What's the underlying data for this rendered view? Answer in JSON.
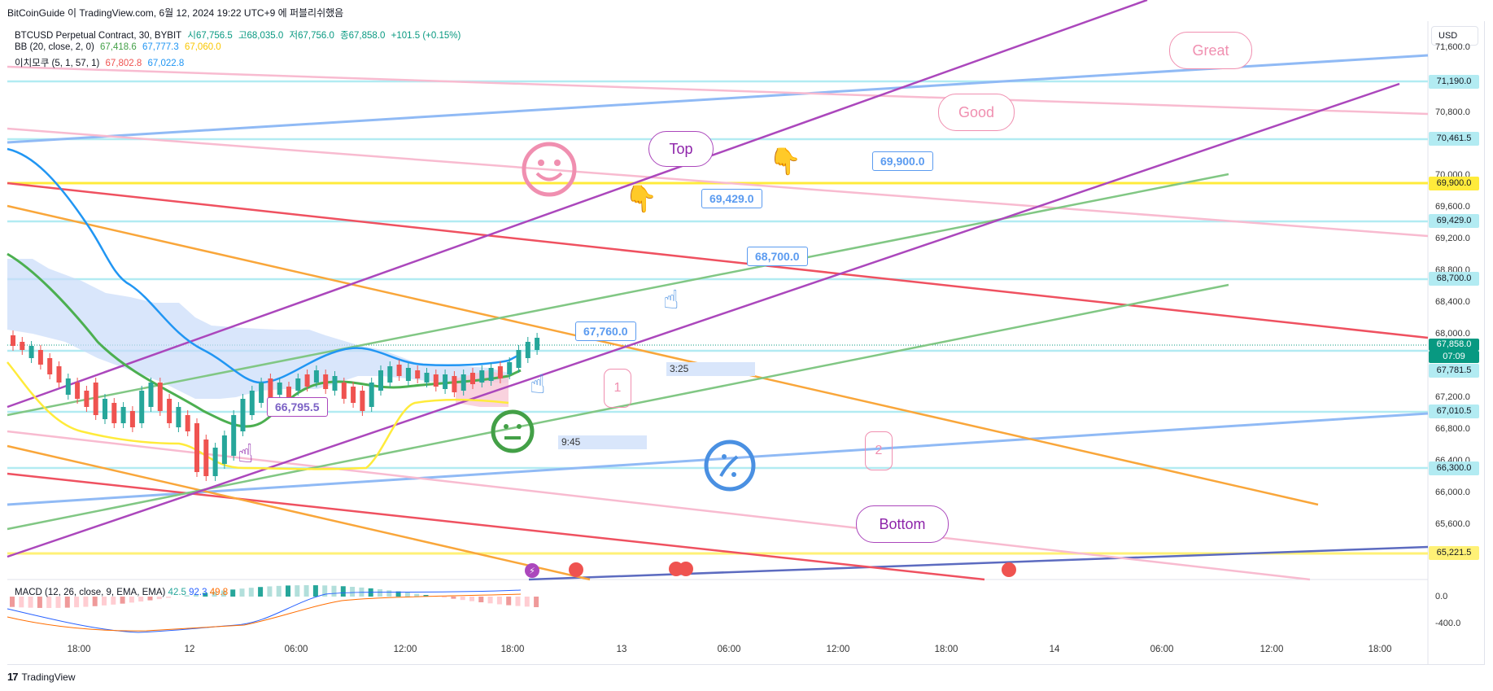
{
  "header": {
    "title": "BitCoinGuide 이 TradingView.com, 6월 12, 2024 19:22 UTC+9 에 퍼블리쉬했음"
  },
  "legend": {
    "symbol": "BTCUSD Perpetual Contract, 30, BYBIT",
    "open": "시67,756.5",
    "high": "고68,035.0",
    "low": "저67,756.0",
    "close": "종67,858.0",
    "change": "+101.5 (+0.15%)",
    "bb_name": "BB (20, close, 2, 0)",
    "bb_basis": "67,418.6",
    "bb_upper": "67,777.3",
    "bb_lower": "67,060.0",
    "ichi_name": "이치모쿠 (5, 1, 57, 1)",
    "ichi_a": "67,802.8",
    "ichi_b": "67,022.8"
  },
  "macd_legend": {
    "name": "MACD (12, 26, close, 9, EMA, EMA)",
    "hist": "42.5",
    "macd": "92.3",
    "signal": "49.8"
  },
  "currency": "USD",
  "price_axis": [
    "71,600.0",
    "70,800.0",
    "70,000.0",
    "69,600.0",
    "69,200.0",
    "68,800.0",
    "68,400.0",
    "68,000.0",
    "67,200.0",
    "66,800.0",
    "66,400.0",
    "66,000.0",
    "65,600.0"
  ],
  "macd_axis": [
    "0.0",
    "-400.0"
  ],
  "price_labels": {
    "l71190": "71,190.0",
    "l70461": "70,461.5",
    "l69900": "69,900.0",
    "l69429": "69,429.0",
    "l68700": "68,700.0",
    "l67858": "67,858.0",
    "countdown": "07:09",
    "l67781": "67,781.5",
    "l67010": "67,010.5",
    "l66300": "66,300.0",
    "l65221": "65,221.5"
  },
  "time_axis": [
    "18:00",
    "12",
    "06:00",
    "12:00",
    "18:00",
    "13",
    "06:00",
    "12:00",
    "18:00",
    "14",
    "06:00",
    "12:00",
    "18:00"
  ],
  "annotations": {
    "callout_69900": "69,900.0",
    "callout_69429": "69,429.0",
    "callout_68700": "68,700.0",
    "callout_67760": "67,760.0",
    "callout_66795": "66,795.5",
    "top": "Top",
    "good": "Good",
    "great": "Great",
    "bottom": "Bottom",
    "num_1": "1",
    "num_2": "2",
    "time_325": "3:25",
    "time_945": "9:45"
  },
  "footer": {
    "logo": "TradingView"
  },
  "colors": {
    "up": "#26a69a",
    "down": "#ef5350",
    "purple": "#ab47bc",
    "orange": "#f9a63a",
    "green": "#66bb6a",
    "red": "#ef5160",
    "blue": "#5b9bf0",
    "yellow": "#ffeb3b",
    "cyan_line": "#b2ebf2",
    "pink": "#f8bbd0"
  }
}
